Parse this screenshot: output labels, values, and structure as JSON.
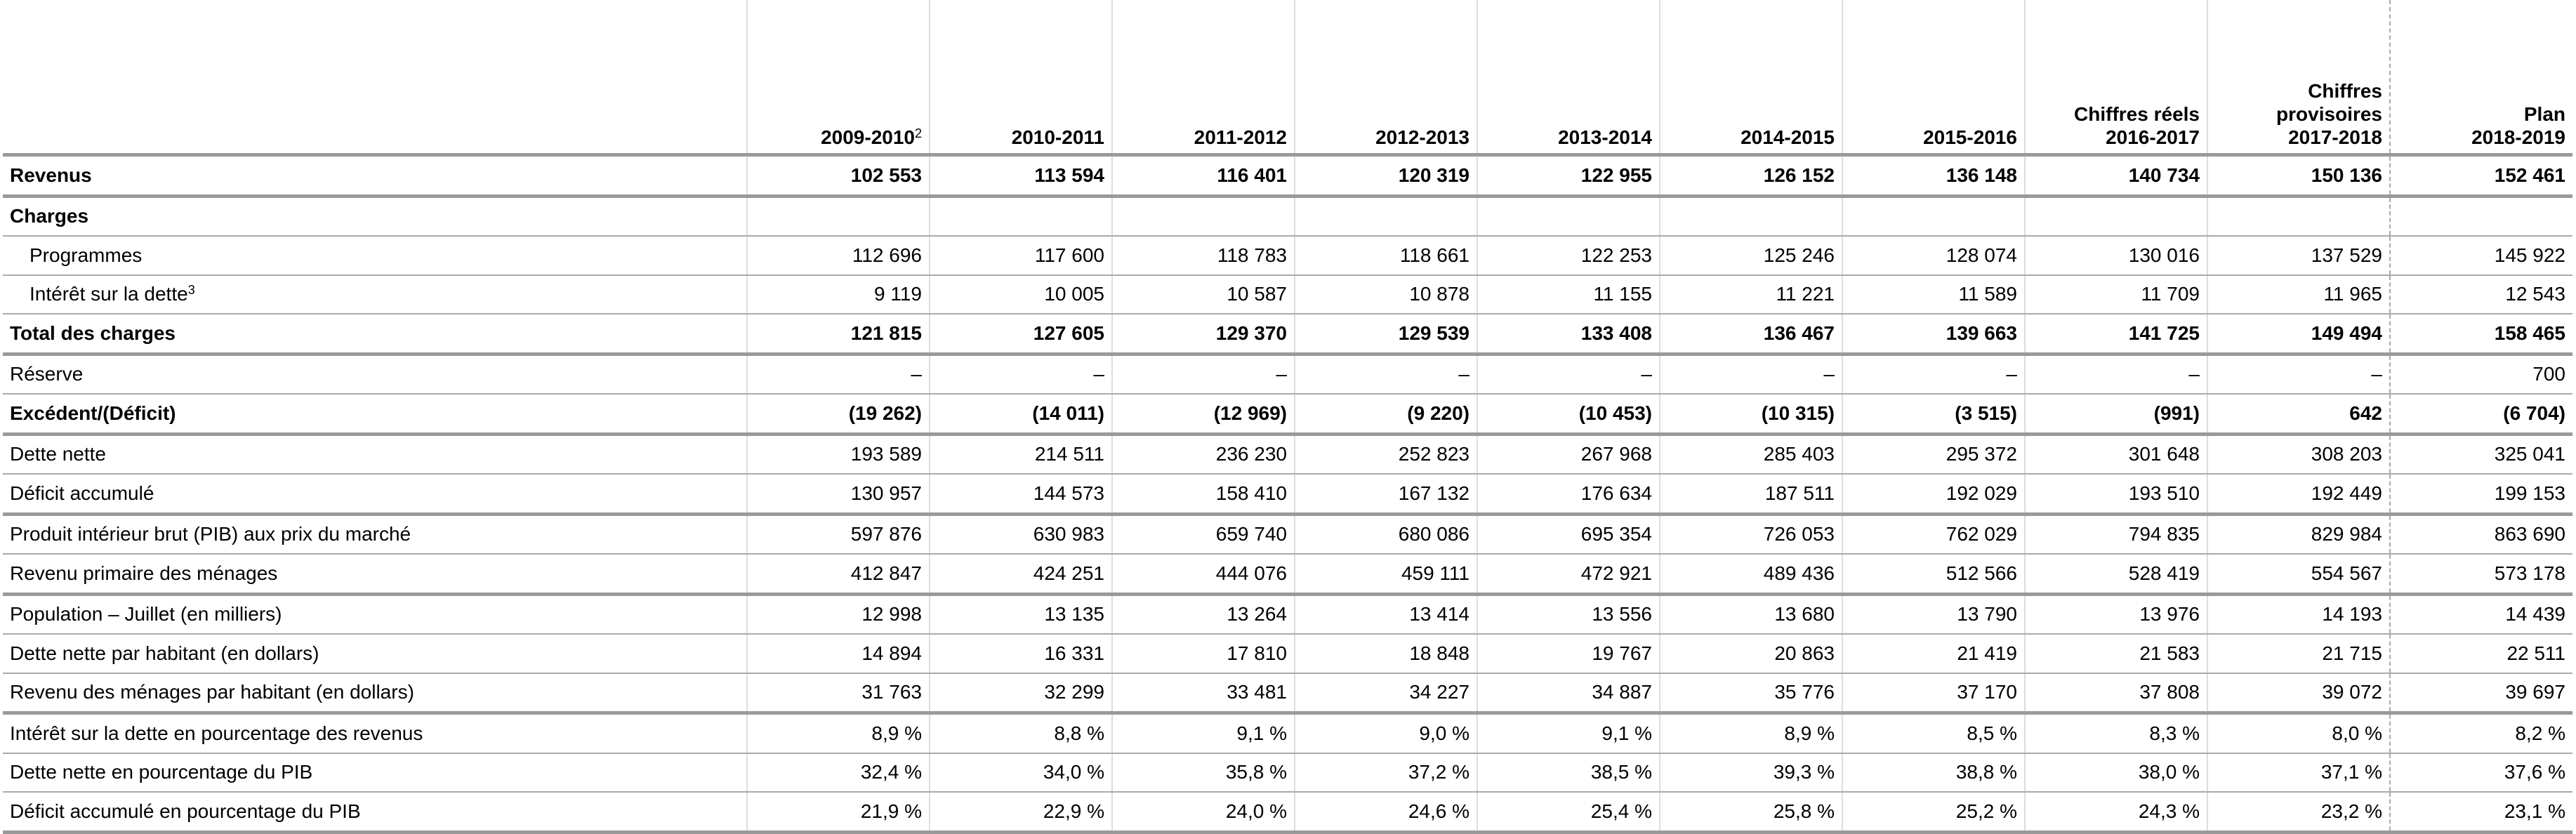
{
  "table": {
    "columns": [
      {
        "lines": [
          "2009-2010"
        ],
        "sup": "2"
      },
      {
        "lines": [
          "2010-2011"
        ]
      },
      {
        "lines": [
          "2011-2012"
        ]
      },
      {
        "lines": [
          "2012-2013"
        ]
      },
      {
        "lines": [
          "2013-2014"
        ]
      },
      {
        "lines": [
          "2014-2015"
        ]
      },
      {
        "lines": [
          "2015-2016"
        ]
      },
      {
        "lines": [
          "Chiffres réels",
          "2016-2017"
        ]
      },
      {
        "lines": [
          "Chiffres",
          "provisoires",
          "2017-2018"
        ]
      },
      {
        "lines": [
          "Plan",
          "2018-2019"
        ]
      }
    ],
    "rows": [
      {
        "label": "Revenus",
        "values": [
          "102 553",
          "113 594",
          "116 401",
          "120 319",
          "122 955",
          "126 152",
          "136 148",
          "140 734",
          "150 136",
          "152 461"
        ]
      },
      {
        "label": "Charges"
      },
      {
        "label": "Programmes",
        "values": [
          "112 696",
          "117 600",
          "118 783",
          "118 661",
          "122 253",
          "125 246",
          "128 074",
          "130 016",
          "137 529",
          "145 922"
        ]
      },
      {
        "label": "Intérêt sur la dette",
        "sup": "3",
        "values": [
          "9 119",
          "10 005",
          "10 587",
          "10 878",
          "11 155",
          "11 221",
          "11 589",
          "11 709",
          "11 965",
          "12 543"
        ]
      },
      {
        "label": "Total des charges",
        "values": [
          "121 815",
          "127 605",
          "129 370",
          "129 539",
          "133 408",
          "136 467",
          "139 663",
          "141 725",
          "149 494",
          "158 465"
        ]
      },
      {
        "label": "Réserve",
        "values": [
          "–",
          "–",
          "–",
          "–",
          "–",
          "–",
          "–",
          "–",
          "–",
          "700"
        ]
      },
      {
        "label": "Excédent/(Déficit)",
        "values": [
          "(19 262)",
          "(14 011)",
          "(12 969)",
          "(9 220)",
          "(10 453)",
          "(10 315)",
          "(3 515)",
          "(991)",
          "642",
          "(6 704)"
        ]
      },
      {
        "label": "Dette nette",
        "values": [
          "193 589",
          "214 511",
          "236 230",
          "252 823",
          "267 968",
          "285 403",
          "295 372",
          "301 648",
          "308 203",
          "325 041"
        ]
      },
      {
        "label": "Déficit accumulé",
        "values": [
          "130 957",
          "144 573",
          "158 410",
          "167 132",
          "176 634",
          "187 511",
          "192 029",
          "193 510",
          "192 449",
          "199 153"
        ]
      },
      {
        "label": "Produit intérieur brut (PIB) aux prix du marché",
        "values": [
          "597 876",
          "630 983",
          "659 740",
          "680 086",
          "695 354",
          "726 053",
          "762 029",
          "794 835",
          "829 984",
          "863 690"
        ]
      },
      {
        "label": "Revenu primaire des ménages",
        "values": [
          "412 847",
          "424 251",
          "444 076",
          "459 111",
          "472 921",
          "489 436",
          "512 566",
          "528 419",
          "554 567",
          "573 178"
        ]
      },
      {
        "label": "Population – Juillet (en milliers)",
        "values": [
          "12 998",
          "13 135",
          "13 264",
          "13 414",
          "13 556",
          "13 680",
          "13 790",
          "13 976",
          "14 193",
          "14 439"
        ]
      },
      {
        "label": "Dette nette par habitant (en dollars)",
        "values": [
          "14 894",
          "16 331",
          "17 810",
          "18 848",
          "19 767",
          "20 863",
          "21 419",
          "21 583",
          "21 715",
          "22 511"
        ]
      },
      {
        "label": "Revenu des ménages par habitant (en dollars)",
        "values": [
          "31 763",
          "32 299",
          "33 481",
          "34 227",
          "34 887",
          "35 776",
          "37 170",
          "37 808",
          "39 072",
          "39 697"
        ]
      },
      {
        "label": "Intérêt sur la dette en pourcentage des revenus",
        "values": [
          "8,9 %",
          "8,8 %",
          "9,1 %",
          "9,0 %",
          "9,1 %",
          "8,9 %",
          "8,5 %",
          "8,3 %",
          "8,0 %",
          "8,2 %"
        ]
      },
      {
        "label": "Dette nette en pourcentage du PIB",
        "values": [
          "32,4 %",
          "34,0 %",
          "35,8 %",
          "37,2 %",
          "38,5 %",
          "39,3 %",
          "38,8 %",
          "38,0 %",
          "37,1 %",
          "37,6 %"
        ]
      },
      {
        "label": "Déficit accumulé en pourcentage du PIB",
        "values": [
          "21,9 %",
          "22,9 %",
          "24,0 %",
          "24,6 %",
          "25,4 %",
          "25,8 %",
          "25,2 %",
          "24,3 %",
          "23,2 %",
          "23,1 %"
        ]
      }
    ]
  }
}
